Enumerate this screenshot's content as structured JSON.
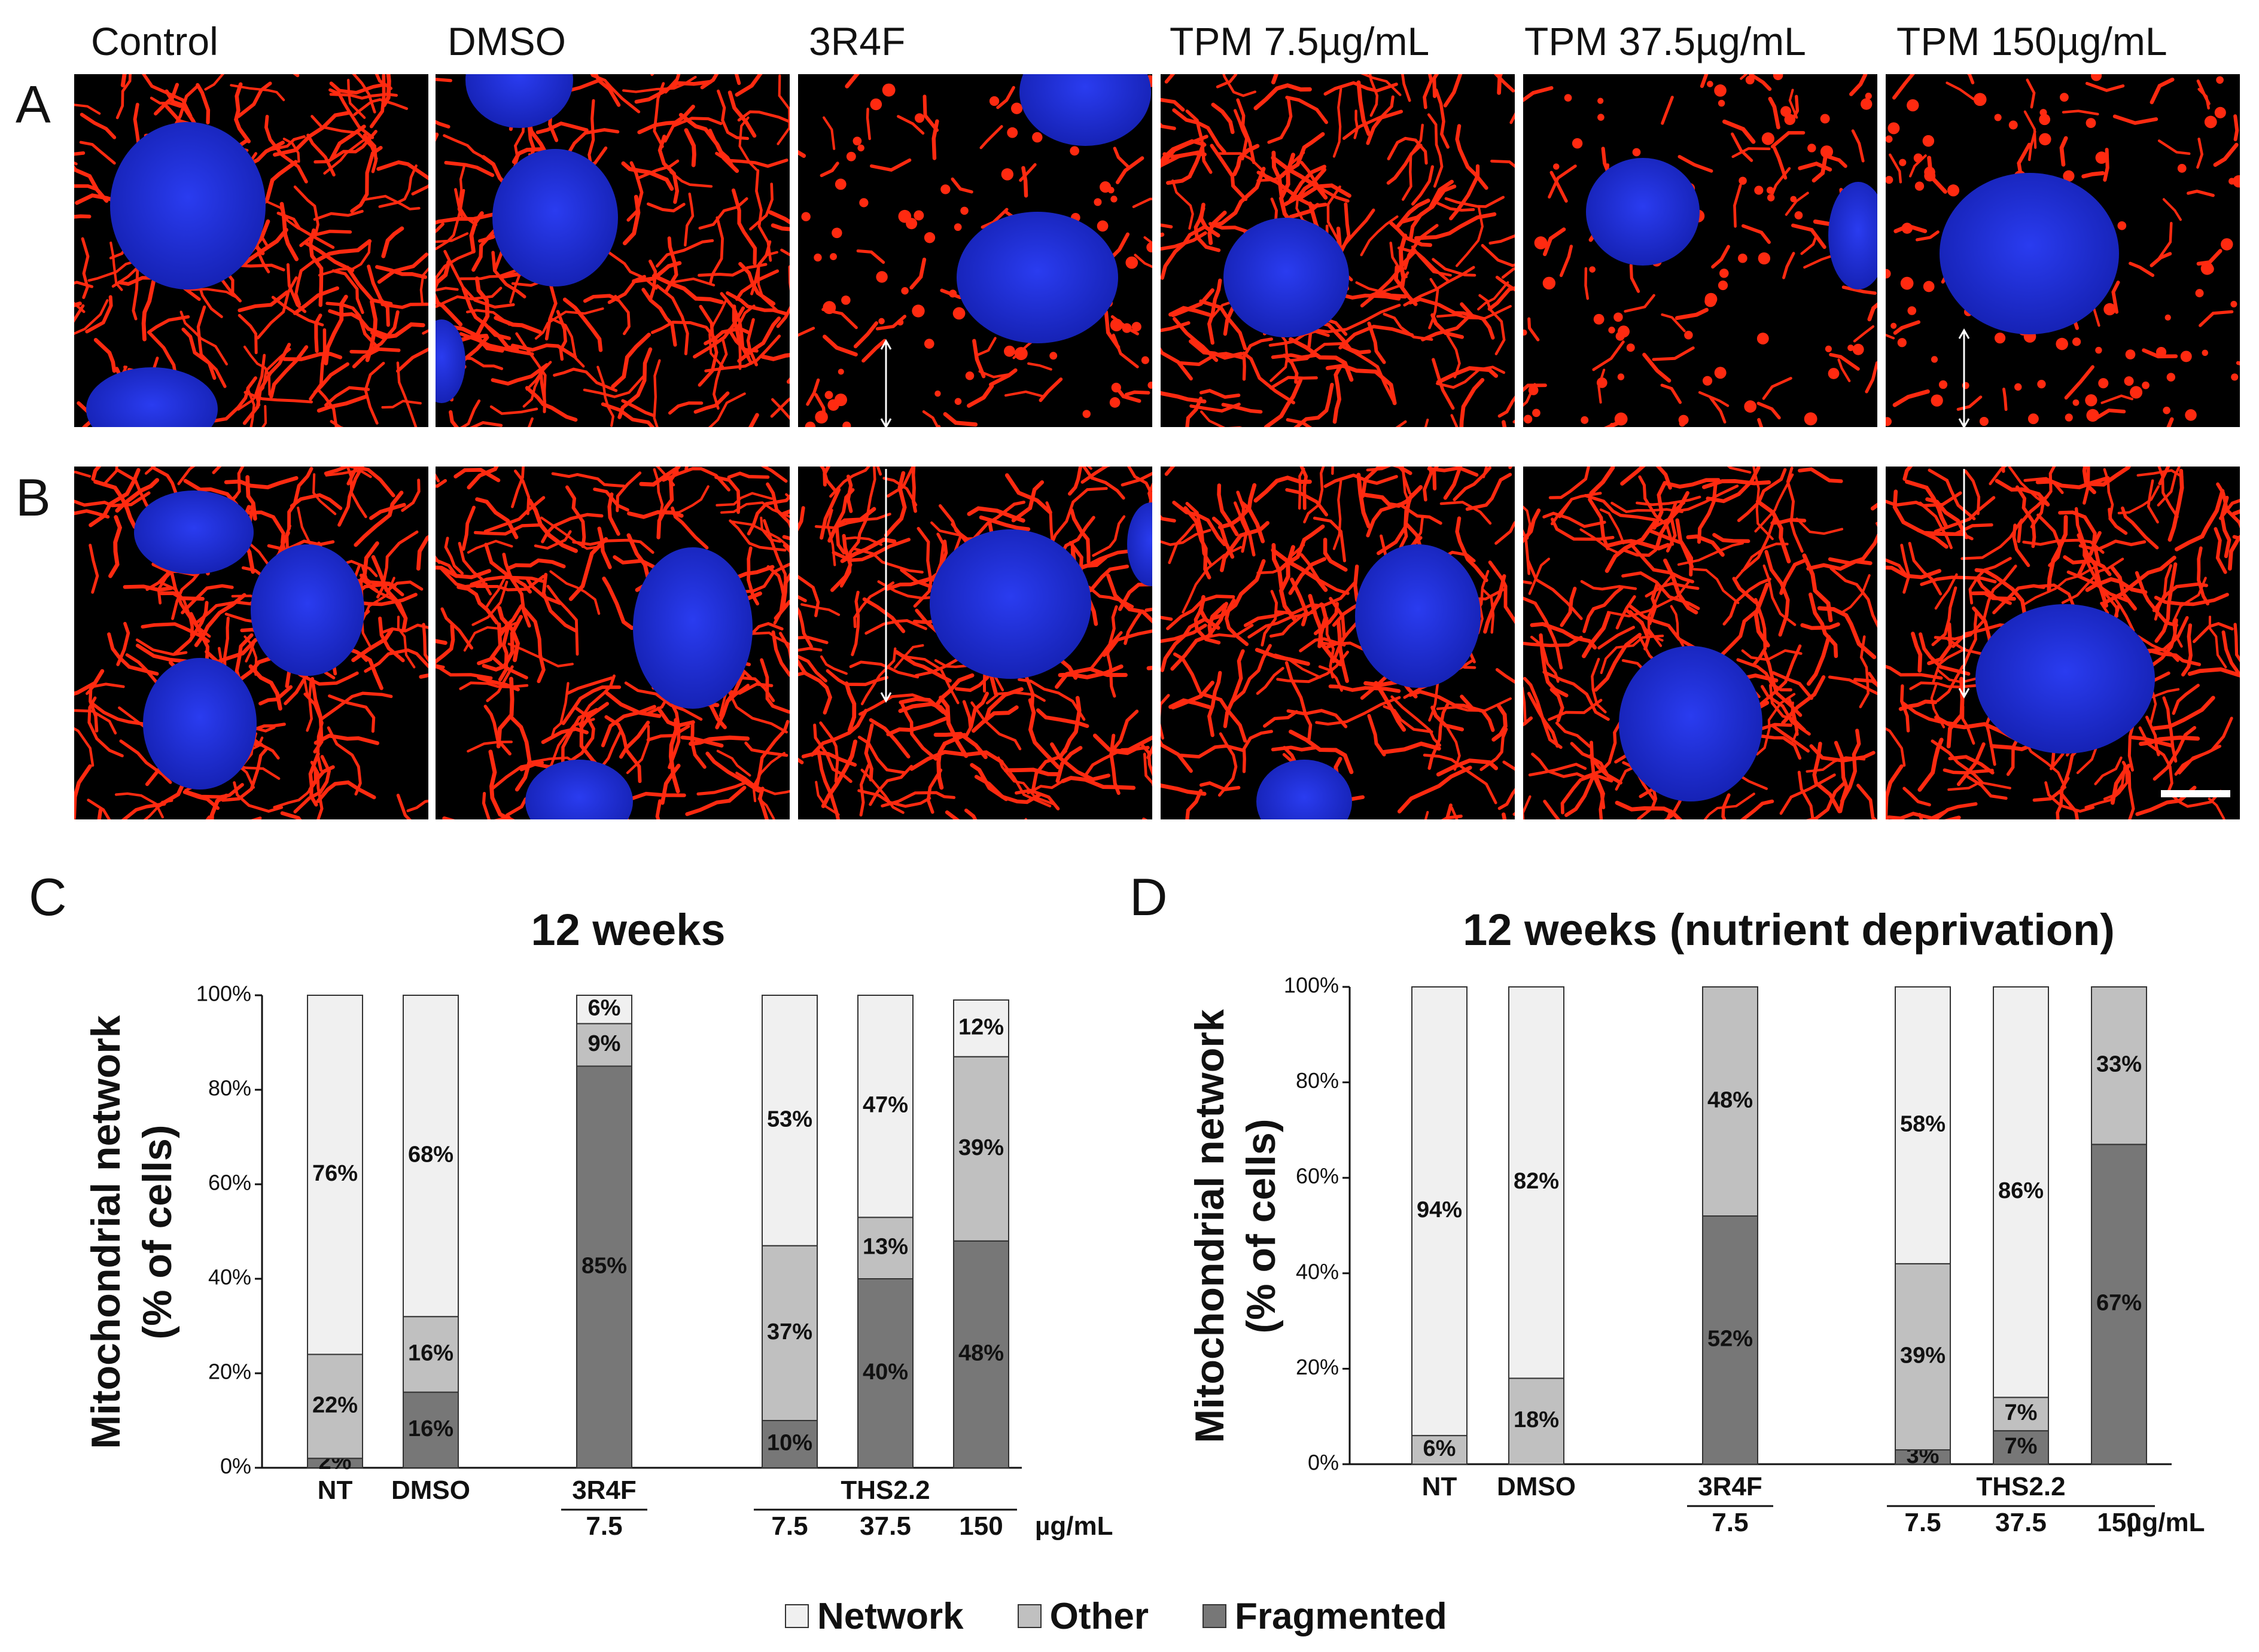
{
  "micrographs": {
    "column_labels": [
      "Control",
      "DMSO",
      "3R4F",
      "TPM 7.5µg/mL",
      "TPM 37.5µg/mL",
      "TPM 150µg/mL"
    ],
    "row_labels": [
      "A",
      "B"
    ],
    "colors": {
      "background": "#000000",
      "mitochondria": "#ff2a10",
      "nuclei": "#1f2bd9"
    }
  },
  "colors": {
    "network": "#f0f0f0",
    "other": "#c0c0c0",
    "fragmented": "#777777",
    "outline": "#333333"
  },
  "legend": [
    {
      "key": "network",
      "label": "Network"
    },
    {
      "key": "other",
      "label": "Other"
    },
    {
      "key": "fragmented",
      "label": "Fragmented"
    }
  ],
  "chart_data": [
    {
      "panel": "C",
      "type": "bar",
      "stacked": true,
      "title": "12 weeks",
      "ylabel": "Mitochondrial network (% of cells)",
      "ylim": [
        0,
        100
      ],
      "yticks": [
        "0%",
        "20%",
        "40%",
        "60%",
        "80%",
        "100%"
      ],
      "categories": [
        "NT",
        "DMSO",
        "7.5",
        "7.5",
        "37.5",
        "150"
      ],
      "group_labels": [
        {
          "label": "3R4F",
          "under": [
            "7.5"
          ]
        },
        {
          "label": "THS2.2",
          "under": [
            "7.5",
            "37.5",
            "150"
          ]
        }
      ],
      "unit_label": "µg/mL",
      "series": [
        {
          "name": "Fragmented",
          "values": [
            2,
            16,
            85,
            10,
            40,
            48
          ],
          "labels": [
            "2%",
            "16%",
            "85%",
            "10%",
            "40%",
            "48%"
          ]
        },
        {
          "name": "Other",
          "values": [
            22,
            16,
            9,
            37,
            13,
            39
          ],
          "labels": [
            "22%",
            "16%",
            "9%",
            "37%",
            "13%",
            "39%"
          ]
        },
        {
          "name": "Network",
          "values": [
            76,
            68,
            6,
            53,
            47,
            12
          ],
          "labels": [
            "76%",
            "68%",
            "6%",
            "53%",
            "47%",
            "12%"
          ]
        }
      ]
    },
    {
      "panel": "D",
      "type": "bar",
      "stacked": true,
      "title": "12 weeks (nutrient deprivation)",
      "ylabel": "Mitochondrial network (% of cells)",
      "ylim": [
        0,
        100
      ],
      "yticks": [
        "0%",
        "20%",
        "40%",
        "60%",
        "80%",
        "100%"
      ],
      "categories": [
        "NT",
        "DMSO",
        "7.5",
        "7.5",
        "37.5",
        "150"
      ],
      "group_labels": [
        {
          "label": "3R4F",
          "under": [
            "7.5"
          ]
        },
        {
          "label": "THS2.2",
          "under": [
            "7.5",
            "37.5",
            "150"
          ]
        }
      ],
      "unit_label": "µg/mL",
      "series": [
        {
          "name": "Fragmented",
          "values": [
            0,
            0,
            52,
            3,
            7,
            67
          ],
          "labels": [
            "",
            "",
            "52%",
            "3%",
            "7%",
            "67%"
          ]
        },
        {
          "name": "Other",
          "values": [
            6,
            18,
            48,
            39,
            7,
            33
          ],
          "labels": [
            "6%",
            "18%",
            "48%",
            "39%",
            "7%",
            "33%"
          ]
        },
        {
          "name": "Network",
          "values": [
            94,
            82,
            0,
            58,
            86,
            0
          ],
          "labels": [
            "94%",
            "82%",
            "",
            "58%",
            "86%",
            ""
          ]
        }
      ]
    }
  ]
}
